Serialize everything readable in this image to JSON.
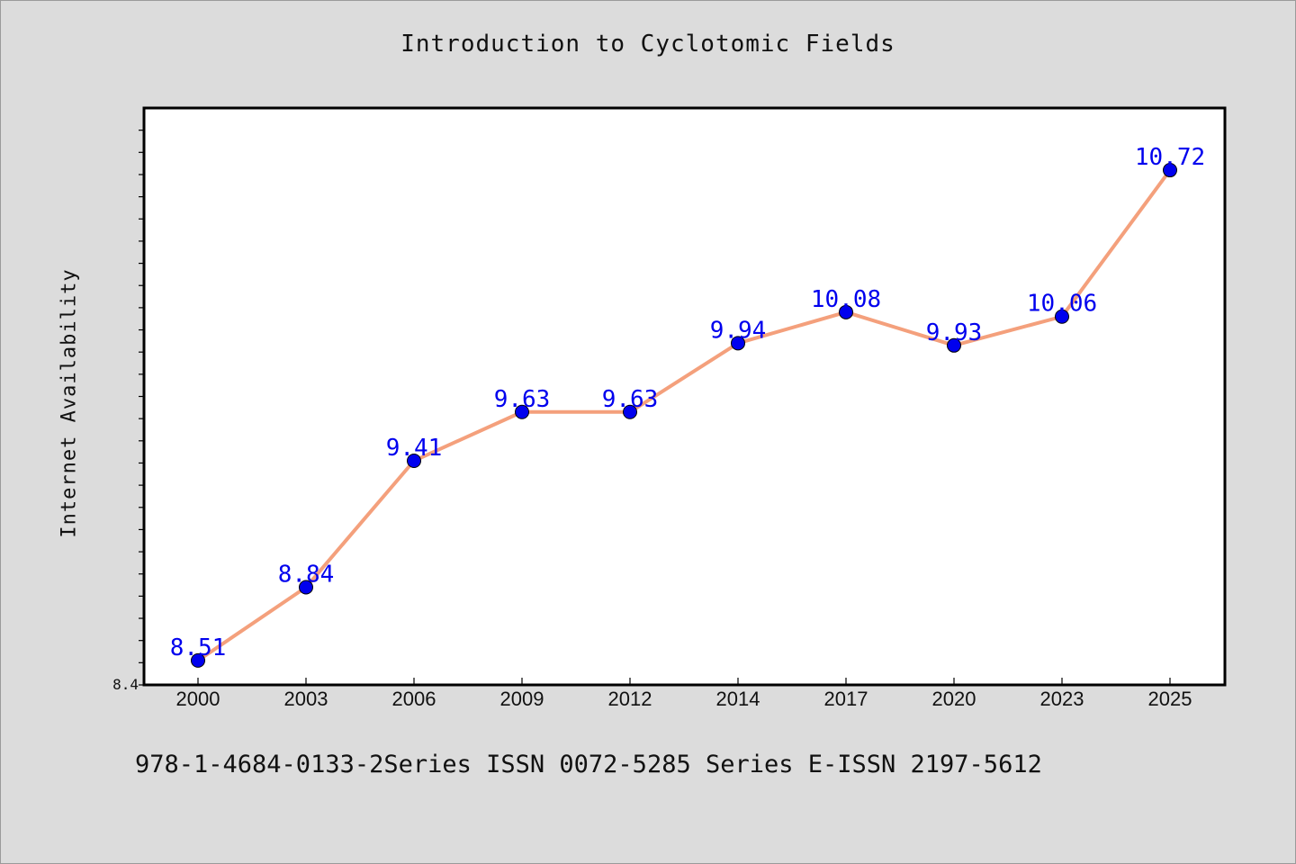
{
  "chart_data": {
    "type": "line",
    "title": "Introduction to Cyclotomic Fields",
    "xlabel": "",
    "ylabel": "Internet Availability",
    "categories": [
      "2000",
      "2003",
      "2006",
      "2009",
      "2012",
      "2014",
      "2017",
      "2020",
      "2023",
      "2025"
    ],
    "series": [
      {
        "values": [
          8.51,
          8.84,
          9.41,
          9.63,
          9.63,
          9.94,
          10.08,
          9.93,
          10.06,
          10.72
        ]
      }
    ],
    "ylim": [
      8.4,
      11.0
    ],
    "ytick_label": "8.4",
    "line_color": "#f4a07c",
    "marker_color": "#0000ee",
    "label_color": "#0000ee",
    "grid": false
  },
  "footer": {
    "text": "978-1-4684-0133-2Series ISSN 0072-5285 Series E-ISSN 2197-5612"
  }
}
